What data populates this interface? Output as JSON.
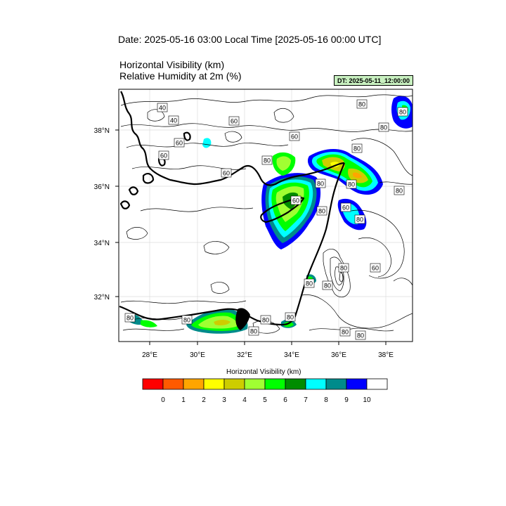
{
  "header": {
    "date_title": "Date: 2025-05-16  03:00 Local Time [2025-05-16  00:00 UTC]",
    "var_line_1": "Horizontal Visibility   (km)",
    "var_line_2": "Relative Humidity at 2m   (%)",
    "dt_badge": "DT: 2025-05-11_12:00:00",
    "dt_badge_color": "#c8f0c0"
  },
  "map": {
    "lat_labels": [
      "38°N",
      "36°N",
      "34°N",
      "32°N"
    ],
    "lon_labels": [
      "28°E",
      "30°E",
      "32°E",
      "34°E",
      "36°E",
      "38°E"
    ],
    "contour_labels": [
      "80",
      "40",
      "40",
      "60",
      "60",
      "60",
      "60",
      "80",
      "60",
      "80",
      "80",
      "80",
      "60",
      "80",
      "80",
      "80",
      "60",
      "80",
      "80",
      "80",
      "80",
      "80",
      "80",
      "80",
      "80",
      "80",
      "60",
      "80",
      "80",
      "80"
    ]
  },
  "colorbar": {
    "title": "Horizontal Visibility  (km)",
    "colors": [
      "#ff0000",
      "#ff5a00",
      "#ffa500",
      "#ffff00",
      "#cdcd00",
      "#a0ff32",
      "#00ff00",
      "#008c00",
      "#00ffff",
      "#008b8b",
      "#0000ff",
      "#ffffff"
    ],
    "tick_labels": [
      "0",
      "1",
      "2",
      "3",
      "4",
      "5",
      "6",
      "7",
      "8",
      "9",
      "10"
    ]
  }
}
